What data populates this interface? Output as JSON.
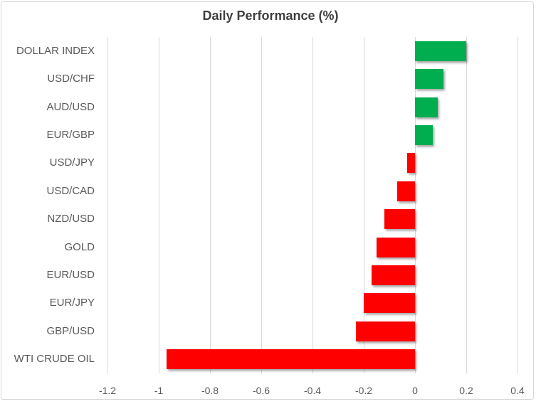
{
  "chart_data": {
    "type": "bar",
    "orientation": "horizontal",
    "title": "Daily Performance (%)",
    "categories": [
      "DOLLAR INDEX",
      "USD/CHF",
      "AUD/USD",
      "EUR/GBP",
      "USD/JPY",
      "USD/CAD",
      "NZD/USD",
      "GOLD",
      "EUR/USD",
      "EUR/JPY",
      "GBP/USD",
      "WTI CRUDE OIL"
    ],
    "values": [
      0.2,
      0.11,
      0.09,
      0.07,
      -0.03,
      -0.07,
      -0.12,
      -0.15,
      -0.17,
      -0.2,
      -0.23,
      -0.97
    ],
    "xlabel": "",
    "ylabel": "",
    "xlim": [
      -1.2,
      0.4
    ],
    "x_ticks": [
      -1.2,
      -1,
      -0.8,
      -0.6,
      -0.4,
      -0.2,
      0,
      0.2,
      0.4
    ],
    "x_tick_labels": [
      "-1.2",
      "-1",
      "-0.8",
      "-0.6",
      "-0.4",
      "-0.2",
      "0",
      "0.2",
      "0.4"
    ],
    "grid": true,
    "legend": "none",
    "colors": {
      "positive_bar": "#00AE50",
      "negative_bar": "#FF0000",
      "gridline": "#D9D9D9",
      "axis_text": "#595959",
      "title_text": "#3F3F3F",
      "frame_border": "#D7D7D7",
      "background": "#FFFFFF"
    }
  }
}
